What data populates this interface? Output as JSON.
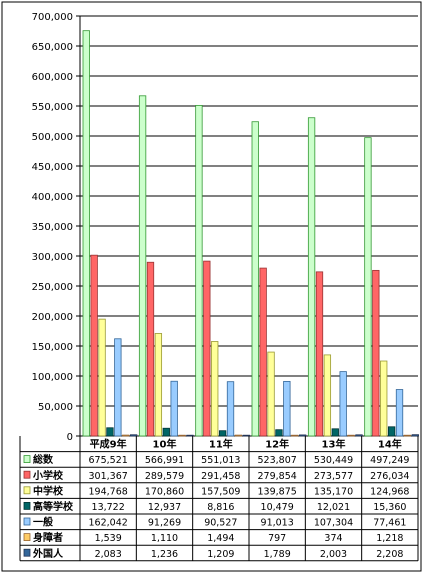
{
  "chart_data": {
    "type": "bar",
    "title": "",
    "xlabel": "",
    "ylabel": "",
    "ylim": [
      0,
      700000
    ],
    "yticks": [
      "0",
      "50,000",
      "100,000",
      "150,000",
      "200,000",
      "250,000",
      "300,000",
      "350,000",
      "400,000",
      "450,000",
      "500,000",
      "550,000",
      "600,000",
      "650,000",
      "700,000"
    ],
    "categories": [
      "平成9年",
      "10年",
      "11年",
      "12年",
      "13年",
      "14年"
    ],
    "series": [
      {
        "name": "総数",
        "color": "#ccffcc",
        "stroke": "#339933",
        "values": [
          675521,
          566991,
          551013,
          523807,
          530449,
          497249
        ],
        "labels": [
          "675,521",
          "566,991",
          "551,013",
          "523,807",
          "530,449",
          "497,249"
        ]
      },
      {
        "name": "小学校",
        "color": "#ff6666",
        "stroke": "#993333",
        "values": [
          301367,
          289579,
          291458,
          279854,
          273577,
          276034
        ],
        "labels": [
          "301,367",
          "289,579",
          "291,458",
          "279,854",
          "273,577",
          "276,034"
        ]
      },
      {
        "name": "中学校",
        "color": "#ffff99",
        "stroke": "#999933",
        "values": [
          194768,
          170860,
          157509,
          139875,
          135170,
          124968
        ],
        "labels": [
          "194,768",
          "170,860",
          "157,509",
          "139,875",
          "135,170",
          "124,968"
        ]
      },
      {
        "name": "高等学校",
        "color": "#006666",
        "stroke": "#003333",
        "values": [
          13722,
          12937,
          8816,
          10479,
          12021,
          15360
        ],
        "labels": [
          "13,722",
          "12,937",
          "8,816",
          "10,479",
          "12,021",
          "15,360"
        ]
      },
      {
        "name": "一般",
        "color": "#99ccff",
        "stroke": "#336699",
        "values": [
          162042,
          91269,
          90527,
          91013,
          107304,
          77461
        ],
        "labels": [
          "162,042",
          "91,269",
          "90,527",
          "91,013",
          "107,304",
          "77,461"
        ]
      },
      {
        "name": "身障者",
        "color": "#ffcc66",
        "stroke": "#996633",
        "values": [
          1539,
          1110,
          1494,
          797,
          374,
          1218
        ],
        "labels": [
          "1,539",
          "1,110",
          "1,494",
          "797",
          "374",
          "1,218"
        ]
      },
      {
        "name": "外国人",
        "color": "#336699",
        "stroke": "#223355",
        "values": [
          2083,
          1236,
          1209,
          1789,
          2003,
          2208
        ],
        "labels": [
          "2,083",
          "1,236",
          "1,209",
          "1,789",
          "2,003",
          "2,208"
        ]
      }
    ],
    "grid": true,
    "legend": "table-below"
  }
}
